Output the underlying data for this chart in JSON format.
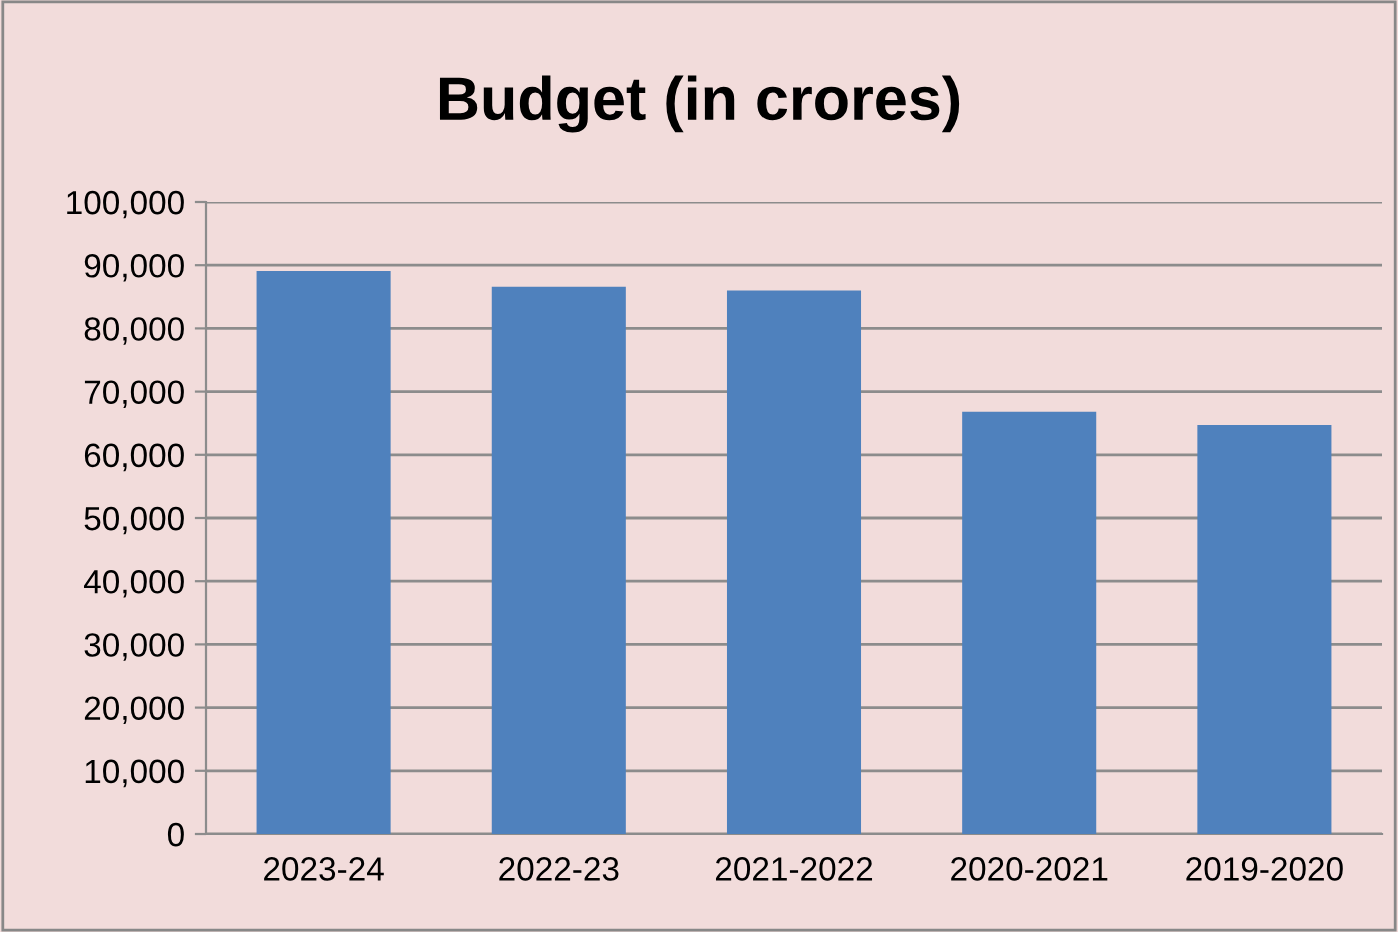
{
  "chart_data": {
    "type": "bar",
    "title": "Budget (in crores)",
    "categories": [
      "2023-24",
      "2022-23",
      "2021-2022",
      "2020-2021",
      "2019-2020"
    ],
    "values": [
      89100,
      86600,
      86000,
      66800,
      64700
    ],
    "color": "#4f81bd",
    "ylim": [
      0,
      100000
    ],
    "yticks": [
      {
        "value": 0,
        "label": "0"
      },
      {
        "value": 10000,
        "label": "10,000"
      },
      {
        "value": 20000,
        "label": "20,000"
      },
      {
        "value": 30000,
        "label": "30,000"
      },
      {
        "value": 40000,
        "label": "40,000"
      },
      {
        "value": 50000,
        "label": "50,000"
      },
      {
        "value": 60000,
        "label": "60,000"
      },
      {
        "value": 70000,
        "label": "70,000"
      },
      {
        "value": 80000,
        "label": "80,000"
      },
      {
        "value": 90000,
        "label": "90,000"
      },
      {
        "value": 100000,
        "label": "100,000"
      }
    ],
    "grid": "y",
    "legend": false
  }
}
